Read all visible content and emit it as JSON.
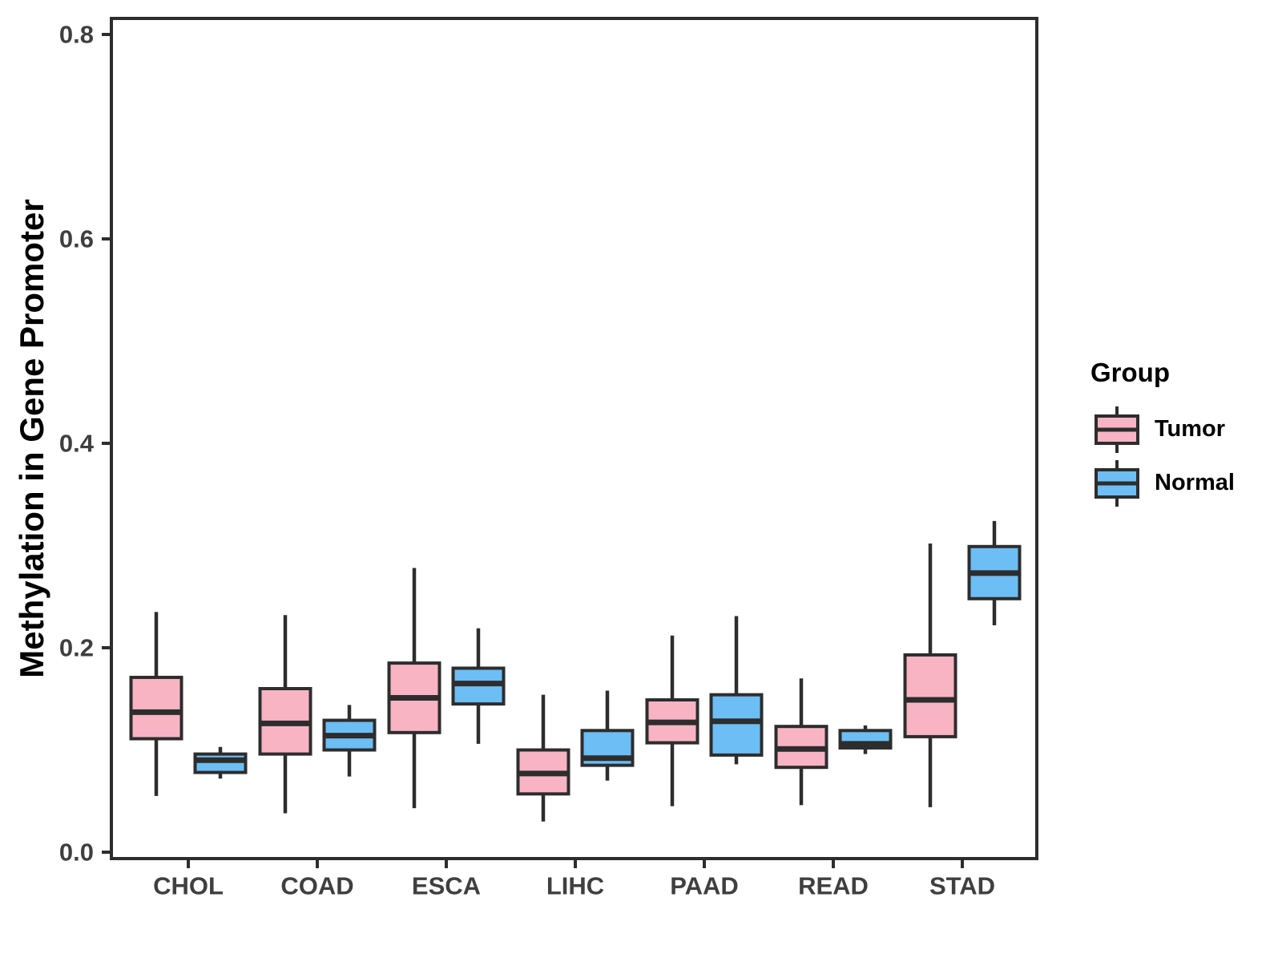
{
  "chart_data": {
    "type": "boxplot",
    "title": "",
    "xlabel": "",
    "ylabel": "Methylation in Gene Promoter",
    "ylim": [
      0,
      0.82
    ],
    "yticks": [
      0.0,
      0.2,
      0.4,
      0.6,
      0.8
    ],
    "ytick_labels": [
      "0.0",
      "0.2",
      "0.4",
      "0.6",
      "0.8"
    ],
    "categories": [
      "CHOL",
      "COAD",
      "ESCA",
      "LIHC",
      "PAAD",
      "READ",
      "STAD"
    ],
    "grid": "off",
    "legend": {
      "title": "Group",
      "position": "right"
    },
    "colors": {
      "stroke": "#2d2d2d",
      "tick_text": "#3f3f3f"
    },
    "series": [
      {
        "name": "Tumor",
        "color": "#F9B4C4",
        "values": [
          {
            "low": 0.055,
            "q1": 0.111,
            "median": 0.137,
            "q3": 0.171,
            "high": 0.235
          },
          {
            "low": 0.038,
            "q1": 0.096,
            "median": 0.126,
            "q3": 0.16,
            "high": 0.232
          },
          {
            "low": 0.043,
            "q1": 0.117,
            "median": 0.151,
            "q3": 0.185,
            "high": 0.278
          },
          {
            "low": 0.03,
            "q1": 0.057,
            "median": 0.077,
            "q3": 0.1,
            "high": 0.154
          },
          {
            "low": 0.045,
            "q1": 0.107,
            "median": 0.127,
            "q3": 0.149,
            "high": 0.212
          },
          {
            "low": 0.046,
            "q1": 0.083,
            "median": 0.101,
            "q3": 0.123,
            "high": 0.17
          },
          {
            "low": 0.044,
            "q1": 0.113,
            "median": 0.149,
            "q3": 0.193,
            "high": 0.302
          }
        ]
      },
      {
        "name": "Normal",
        "color": "#6CBEF4",
        "values": [
          {
            "low": 0.072,
            "q1": 0.078,
            "median": 0.09,
            "q3": 0.096,
            "high": 0.103
          },
          {
            "low": 0.074,
            "q1": 0.1,
            "median": 0.114,
            "q3": 0.129,
            "high": 0.144
          },
          {
            "low": 0.106,
            "q1": 0.145,
            "median": 0.165,
            "q3": 0.18,
            "high": 0.219
          },
          {
            "low": 0.07,
            "q1": 0.085,
            "median": 0.092,
            "q3": 0.119,
            "high": 0.158
          },
          {
            "low": 0.086,
            "q1": 0.095,
            "median": 0.128,
            "q3": 0.154,
            "high": 0.231
          },
          {
            "low": 0.096,
            "q1": 0.102,
            "median": 0.106,
            "q3": 0.119,
            "high": 0.124
          },
          {
            "low": 0.222,
            "q1": 0.248,
            "median": 0.273,
            "q3": 0.299,
            "high": 0.324
          }
        ]
      }
    ]
  }
}
